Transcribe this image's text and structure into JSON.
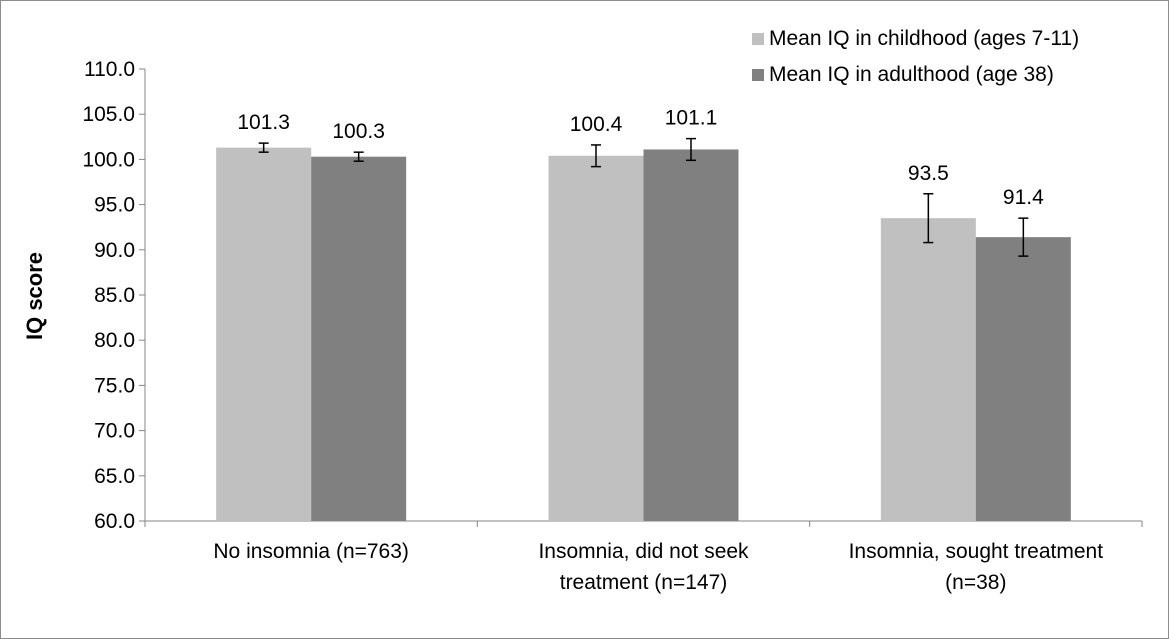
{
  "chart_data": {
    "type": "bar",
    "title": "",
    "xlabel": "",
    "ylabel": "IQ score",
    "ylim": [
      60,
      110
    ],
    "ytick_step": 5,
    "ytick_labels": [
      "60.0",
      "65.0",
      "70.0",
      "75.0",
      "80.0",
      "85.0",
      "90.0",
      "95.0",
      "100.0",
      "105.0",
      "110.0"
    ],
    "categories": [
      [
        "No insomnia (n=763)"
      ],
      [
        "Insomnia, did not seek",
        "treatment (n=147)"
      ],
      [
        "Insomnia, sought treatment",
        "(n=38)"
      ]
    ],
    "series": [
      {
        "name": "Mean IQ in childhood (ages 7-11)",
        "color": "#c0c0c0",
        "values": [
          101.3,
          100.4,
          93.5
        ],
        "labels": [
          "101.3",
          "100.4",
          "93.5"
        ],
        "error": [
          0.5,
          1.2,
          2.7
        ]
      },
      {
        "name": "Mean IQ in adulthood (age 38)",
        "color": "#808080",
        "values": [
          100.3,
          101.1,
          91.4
        ],
        "labels": [
          "100.3",
          "101.1",
          "91.4"
        ],
        "error": [
          0.5,
          1.2,
          2.1
        ]
      }
    ],
    "grid": false,
    "legend_position": "top-right"
  }
}
